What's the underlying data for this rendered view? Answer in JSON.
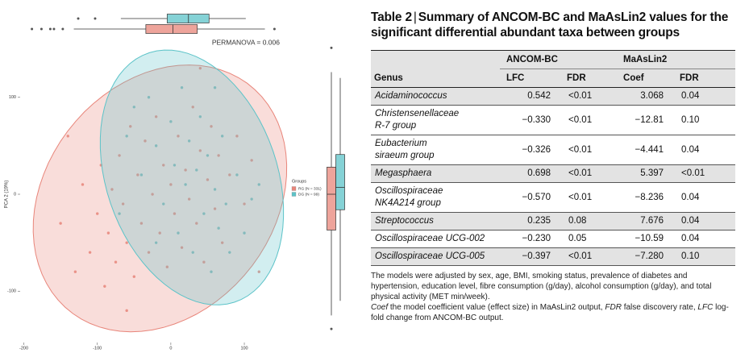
{
  "chart_data": {
    "type": "scatter",
    "y_label": "PCA 2 (19%)",
    "annotation": "PERMANOVA = 0.006",
    "legend_title": "Groups",
    "xlim": [
      -205,
      157
    ],
    "ylim": [
      -153,
      163
    ],
    "xticks": [
      -200,
      -100,
      0,
      100
    ],
    "yticks": [
      -100,
      0,
      100
    ],
    "series": [
      {
        "name": "RG (N = 331)",
        "color": "#e8857a",
        "x": [
          -150,
          -130,
          -120,
          -110,
          -100,
          -95,
          -90,
          -85,
          -80,
          -75,
          -70,
          -65,
          -60,
          -55,
          -50,
          -45,
          -40,
          -35,
          -30,
          -25,
          -20,
          -15,
          -10,
          -5,
          0,
          5,
          10,
          15,
          20,
          25,
          30,
          35,
          40,
          45,
          50,
          55,
          60,
          65,
          70,
          80,
          90,
          100,
          110,
          -140,
          -60,
          40,
          120
        ],
        "y": [
          -30,
          -80,
          10,
          -60,
          -20,
          30,
          -95,
          -40,
          5,
          -70,
          40,
          -10,
          -50,
          70,
          -85,
          20,
          -30,
          55,
          -60,
          0,
          80,
          -40,
          30,
          -75,
          10,
          -20,
          60,
          -55,
          25,
          -5,
          90,
          -30,
          45,
          -70,
          15,
          70,
          -15,
          40,
          -50,
          20,
          60,
          -10,
          35,
          60,
          -120,
          130,
          -80
        ],
        "x_box": {
          "whislo": -132,
          "q1": -34,
          "med": 3,
          "q3": 36,
          "whishi": 128,
          "fliers": [
            -189,
            -176,
            -164,
            -159,
            -147,
            141
          ]
        },
        "y_box": {
          "whislo": -125,
          "q1": -37,
          "med": 0,
          "q3": 28,
          "whishi": 126,
          "fliers": [
            151,
            -139
          ]
        }
      },
      {
        "name": "DG (N = 99)",
        "color": "#5cc3c8",
        "x": [
          -60,
          -50,
          -40,
          -30,
          -20,
          -10,
          0,
          5,
          10,
          15,
          20,
          25,
          30,
          35,
          40,
          45,
          50,
          55,
          60,
          65,
          70,
          75,
          80,
          90,
          100,
          110,
          -70,
          120,
          -20,
          60
        ],
        "y": [
          60,
          90,
          20,
          100,
          50,
          -10,
          75,
          30,
          -40,
          110,
          10,
          55,
          -60,
          25,
          80,
          -20,
          40,
          -80,
          5,
          -35,
          60,
          -10,
          -60,
          20,
          -40,
          -5,
          -20,
          10,
          -50,
          110
        ],
        "x_box": {
          "whislo": -68,
          "q1": -5,
          "med": 24,
          "q3": 52,
          "whishi": 102,
          "fliers": [
            -126,
            -103
          ]
        },
        "y_box": {
          "whislo": -110,
          "q1": -16,
          "med": 7,
          "q3": 41,
          "whishi": 120,
          "fliers": []
        }
      }
    ]
  },
  "table": {
    "label": "Table 2",
    "title": "Summary of ANCOM-BC and MaAsLin2 values for the significant differential abundant taxa between groups",
    "group_headers": [
      "ANCOM-BC",
      "MaAsLin2"
    ],
    "columns": [
      "Genus",
      "LFC",
      "FDR",
      "Coef",
      "FDR"
    ],
    "rows": [
      {
        "genus": [
          "Acidaminococcus"
        ],
        "values": [
          "0.542",
          "<0.01",
          "3.068",
          "0.04"
        ]
      },
      {
        "genus": [
          "Christensenellaceae",
          "R-7 group"
        ],
        "values": [
          "−0.330",
          "<0.01",
          "−12.81",
          "0.10"
        ]
      },
      {
        "genus": [
          "Eubacterium",
          "siraeum group"
        ],
        "values": [
          "−0.326",
          "<0.01",
          "−4.441",
          "0.04"
        ]
      },
      {
        "genus": [
          "Megasphaera"
        ],
        "values": [
          "0.698",
          "<0.01",
          "5.397",
          "<0.01"
        ]
      },
      {
        "genus": [
          "Oscillospiraceae",
          "NK4A214 group"
        ],
        "values": [
          "−0.570",
          "<0.01",
          "−8.236",
          "0.04"
        ]
      },
      {
        "genus": [
          "Streptococcus"
        ],
        "values": [
          "0.235",
          "0.08",
          "7.676",
          "0.04"
        ]
      },
      {
        "genus": [
          "Oscillospiraceae UCG-002"
        ],
        "values": [
          "−0.230",
          "0.05",
          "−10.59",
          "0.04"
        ]
      },
      {
        "genus": [
          "Oscillospiraceae UCG-005"
        ],
        "values": [
          "−0.397",
          "<0.01",
          "−7.280",
          "0.10"
        ]
      }
    ],
    "note": "The models were adjusted by sex, age, BMI, smoking status, prevalence of diabetes and hypertension, education level, fibre consumption (g/day), alcohol consumption (g/day), and total physical activity (MET min/week).",
    "abbreviations": [
      {
        "term": "Coef",
        "definition": "the model coefficient value (effect size) in MaAsLin2 output,"
      },
      {
        "term": "FDR",
        "definition": "false discovery rate,"
      },
      {
        "term": "LFC",
        "definition": "log-fold change from ANCOM-BC output."
      }
    ]
  }
}
